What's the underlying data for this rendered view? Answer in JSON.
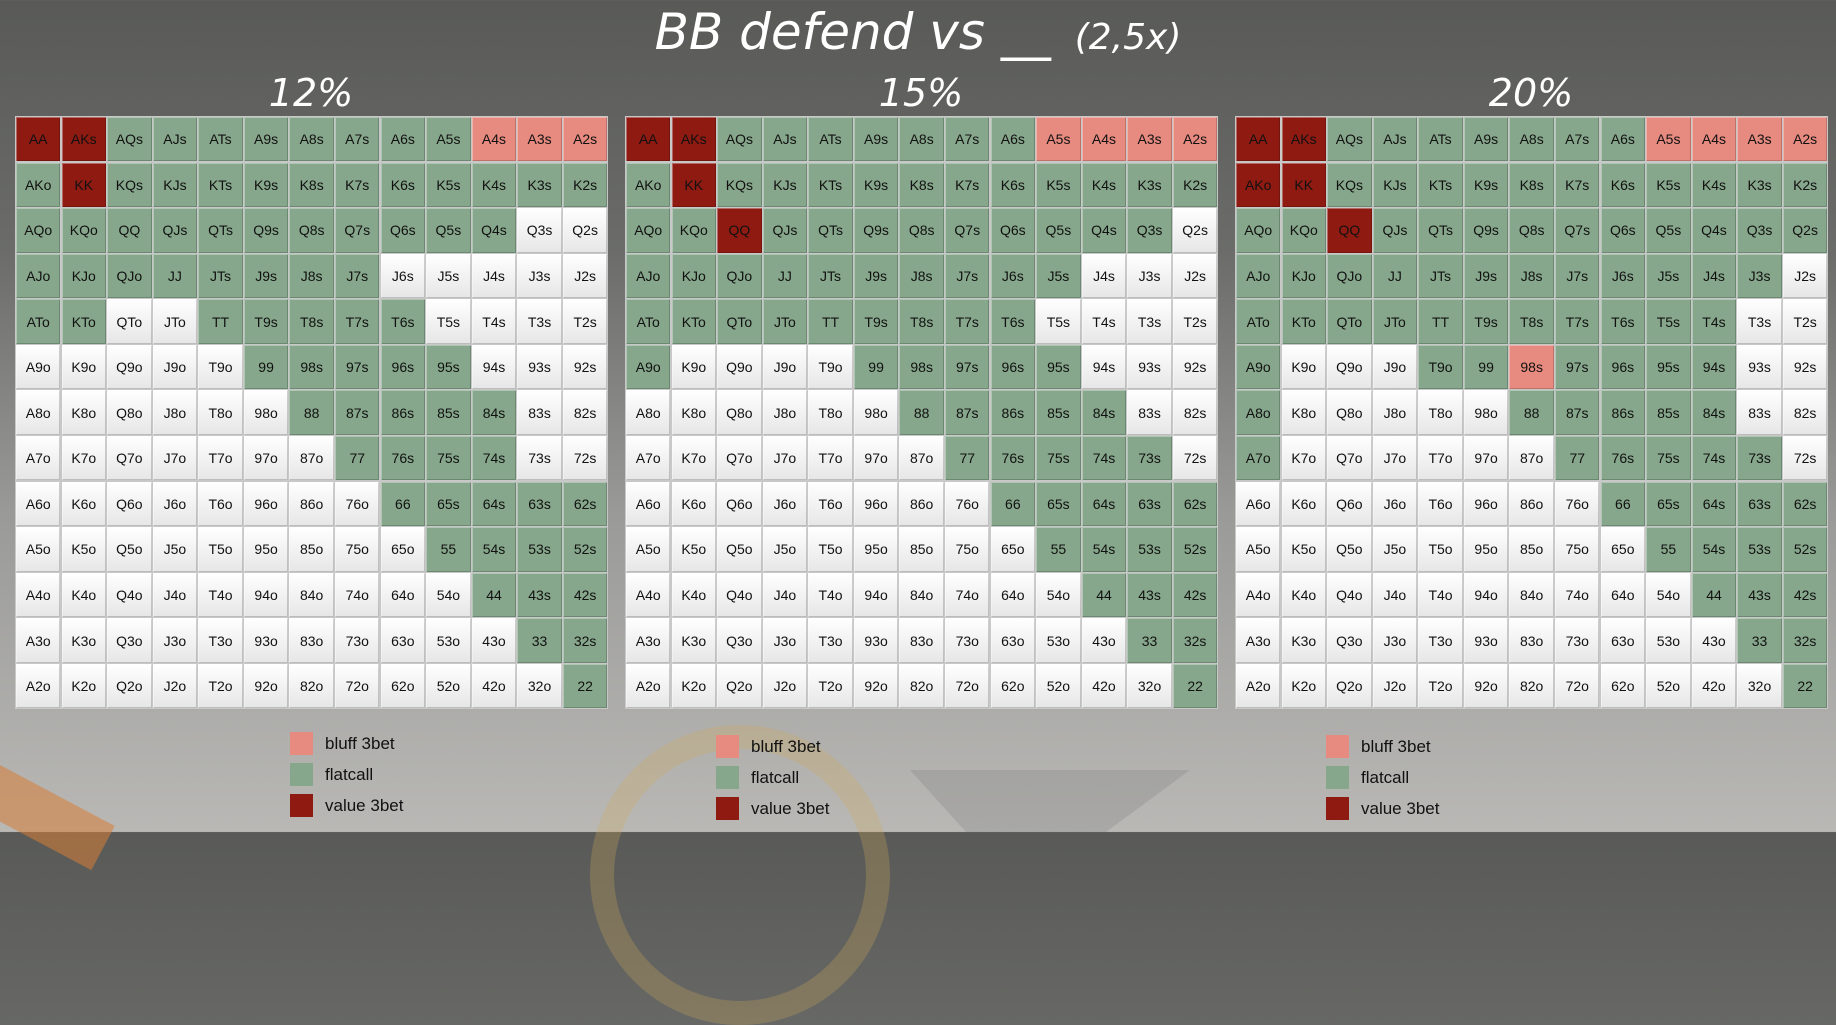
{
  "title": "BB defend vs __",
  "title_suffix": "(2,5x)",
  "ranks": [
    "A",
    "K",
    "Q",
    "J",
    "T",
    "9",
    "8",
    "7",
    "6",
    "5",
    "4",
    "3",
    "2"
  ],
  "colors": {
    "bluff": "#e78a7f",
    "call": "#86a78b",
    "value": "#8e1a12",
    "fold": "#f2f2f2"
  },
  "legend": [
    {
      "key": "bluff",
      "label": "bluff 3bet"
    },
    {
      "key": "call",
      "label": "flatcall"
    },
    {
      "key": "value",
      "label": "value 3bet"
    }
  ],
  "charts": [
    {
      "percent": "12%",
      "grid": [
        "VVCCCCCCCCBBB",
        "CVCCCCCCCCCCC",
        "CCCCCCCCCCCFF",
        "CCCCCCCCFFFFF",
        "CCFFCCCCCFFFF",
        "FFFFFCCCCCFFF",
        "FFFFFFCCCCCFF",
        "FFFFFFFCCCCFF",
        "FFFFFFFFCCCCC",
        "FFFFFFFFFCCCC",
        "FFFFFFFFFFCCC",
        "FFFFFFFFFFFCC",
        "FFFFFFFFFFFFC"
      ]
    },
    {
      "percent": "15%",
      "grid": [
        "VVCCCCCCCBBBB",
        "CVCCCCCCCCCCC",
        "CCVCCCCCCCCCF",
        "CCCCCCCCCCFFF",
        "CCCCCCCCCFFFF",
        "CFFFFCCCCCFFF",
        "FFFFFFCCCCCFF",
        "FFFFFFFCCCCCF",
        "FFFFFFFFCCCCC",
        "FFFFFFFFFCCCC",
        "FFFFFFFFFFCCC",
        "FFFFFFFFFFFCC",
        "FFFFFFFFFFFFC"
      ]
    },
    {
      "percent": "20%",
      "grid": [
        "VVCCCCCCCBBBB",
        "VVCCCCCCCCCCC",
        "CCVCCCCCCCCCC",
        "CCCCCCCCCCCCF",
        "CCCCCCCCCCCFF",
        "CFFFCCBCCCCFF",
        "CFFFFFCCCCCFF",
        "CFFFFFFCCCCCF",
        "FFFFFFFFCCCCC",
        "FFFFFFFFFCCCC",
        "FFFFFFFFFFCCC",
        "FFFFFFFFFFFCC",
        "FFFFFFFFFFFFC"
      ]
    }
  ]
}
